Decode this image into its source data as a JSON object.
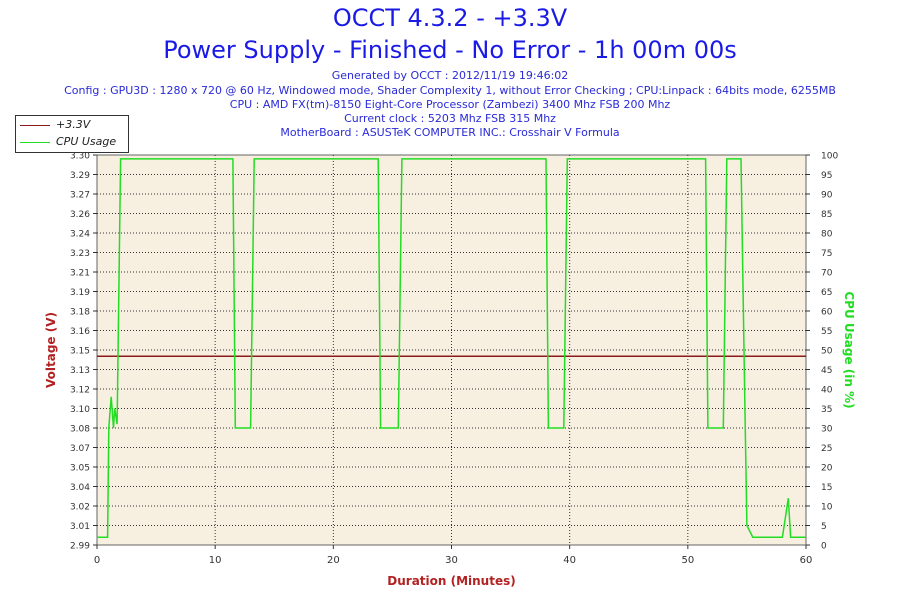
{
  "header": {
    "title": "OCCT 4.3.2 - +3.3V",
    "subtitle": "Power Supply - Finished - No Error - 1h 00m 00s",
    "info": [
      "Generated by OCCT : 2012/11/19 19:46:02",
      "Config : GPU3D : 1280 x 720 @ 60 Hz, Windowed mode, Shader Complexity 1, without Error Checking ; CPU:Linpack : 64bits mode, 6255MB",
      "CPU : AMD FX(tm)-8150 Eight-Core Processor (Zambezi) 3400 Mhz FSB 200 Mhz",
      "Current clock : 5203 Mhz FSB 315 Mhz",
      "MotherBoard : ASUSTeK COMPUTER INC.: Crosshair V Formula"
    ]
  },
  "legend": {
    "items": [
      {
        "label": "+3.3V",
        "color": "#8b1a1a"
      },
      {
        "label": "CPU Usage",
        "color": "#22dd22"
      }
    ]
  },
  "colors": {
    "plot_bg": "#f7efe0",
    "grid": "#333333",
    "voltage_axis": "#b22222",
    "cpu_axis": "#22dd22",
    "x_axis": "#b22222",
    "tick_text": "#333333"
  },
  "chart_data": {
    "type": "line",
    "title": "OCCT 4.3.2 - +3.3V",
    "subtitle": "Power Supply - Finished - No Error - 1h 00m 00s",
    "xlabel": "Duration (Minutes)",
    "ylabel": "Voltage (V)",
    "y2label": "CPU Usage (in %)",
    "xlim": [
      0,
      60
    ],
    "ylim": [
      2.99,
      3.3
    ],
    "y2lim": [
      0,
      100
    ],
    "x_ticks": [
      0,
      10,
      20,
      30,
      40,
      50,
      60
    ],
    "y_ticks": [
      "2.99",
      "3.01",
      "3.02",
      "3.04",
      "3.05",
      "3.07",
      "3.08",
      "3.10",
      "3.12",
      "3.13",
      "3.15",
      "3.16",
      "3.18",
      "3.19",
      "3.21",
      "3.23",
      "3.24",
      "3.26",
      "3.27",
      "3.29",
      "3.30"
    ],
    "y2_ticks": [
      0,
      5,
      10,
      15,
      20,
      25,
      30,
      35,
      40,
      45,
      50,
      55,
      60,
      65,
      70,
      75,
      80,
      85,
      90,
      95,
      100
    ],
    "grid": true,
    "legend_position": "top-left",
    "series": [
      {
        "name": "+3.3V",
        "axis": "left",
        "x": [
          0,
          60
        ],
        "y": [
          3.14,
          3.14
        ]
      },
      {
        "name": "CPU Usage",
        "axis": "right",
        "x": [
          0,
          0.9,
          1.0,
          1.2,
          1.4,
          1.5,
          1.7,
          2.0,
          5,
          11.5,
          11.7,
          12.0,
          13.0,
          13.3,
          13.5,
          20,
          23.8,
          24.0,
          25.5,
          25.8,
          30,
          38.0,
          38.2,
          39.5,
          39.8,
          45,
          51.5,
          51.7,
          53.0,
          53.3,
          54.5,
          54.8,
          55.0,
          55.5,
          57,
          58,
          58.5,
          58.7,
          58.9,
          60
        ],
        "y": [
          2,
          2,
          30,
          38,
          30,
          35,
          31,
          99,
          99,
          99,
          30,
          30,
          30,
          99,
          99,
          99,
          99,
          30,
          30,
          99,
          99,
          99,
          30,
          30,
          99,
          99,
          99,
          30,
          30,
          99,
          99,
          40,
          5,
          2,
          2,
          2,
          12,
          2,
          2,
          2
        ]
      }
    ]
  }
}
